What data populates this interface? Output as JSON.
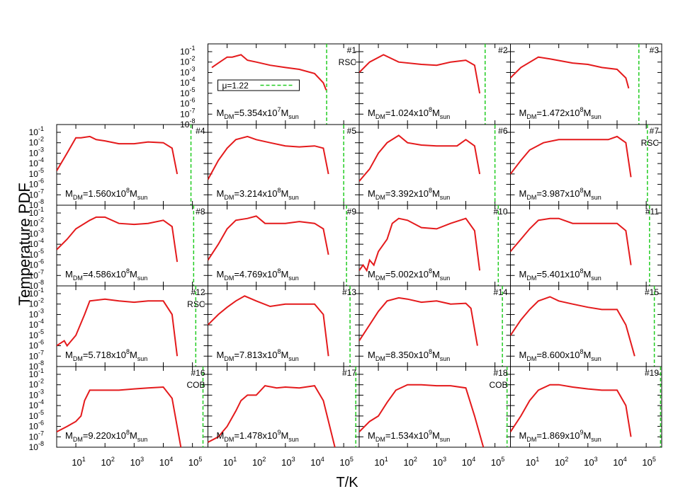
{
  "axes": {
    "xlabel": "T/K",
    "ylabel": "Temperature PDF",
    "log": true,
    "xlim": [
      2.2,
      340000
    ],
    "ylim": [
      1e-08,
      0.56
    ],
    "xticks": [
      {
        "value": 10,
        "label": "10",
        "power": "1"
      },
      {
        "value": 100,
        "label": "10",
        "power": "2"
      },
      {
        "value": 1000,
        "label": "10",
        "power": "3"
      },
      {
        "value": 10000,
        "label": "10",
        "power": "4"
      },
      {
        "value": 100000,
        "label": "10",
        "power": "5"
      }
    ],
    "yticks": [
      {
        "value": 1e-08,
        "label": "10",
        "power": "-8"
      },
      {
        "value": 1e-07,
        "label": "10",
        "power": "-7"
      },
      {
        "value": 1e-06,
        "label": "10",
        "power": "-6"
      },
      {
        "value": 1e-05,
        "label": "10",
        "power": "-5"
      },
      {
        "value": 0.0001,
        "label": "10",
        "power": "-4"
      },
      {
        "value": 0.001,
        "label": "10",
        "power": "-3"
      },
      {
        "value": 0.01,
        "label": "10",
        "power": "-2"
      },
      {
        "value": 0.1,
        "label": "10",
        "power": "-1"
      }
    ]
  },
  "chart_data": [
    {
      "type": "line",
      "title": "#1",
      "note": "RSC",
      "mass_label": [
        "M",
        "DM",
        "=5.354x10",
        "7",
        "M",
        "sun"
      ],
      "x": [
        3,
        5,
        10,
        15,
        30,
        50,
        100,
        300,
        1000,
        3000,
        10000,
        20000,
        25000
      ],
      "series": [
        {
          "color": "#e41a1c",
          "values": [
            0.003,
            0.008,
            0.03,
            0.03,
            0.05,
            0.015,
            0.01,
            0.005,
            0.003,
            0.002,
            0.0008,
            0.0001,
            2e-05
          ]
        }
      ],
      "vline": {
        "name": "μ=1.22",
        "color": "#22cc22",
        "x": 26000
      }
    },
    {
      "type": "line",
      "title": "#2",
      "mass_label": [
        "M",
        "DM",
        "=1.024x10",
        "8",
        "M",
        "sun"
      ],
      "x": [
        2.2,
        5,
        15,
        50,
        300,
        1000,
        3000,
        10000,
        20000,
        30000
      ],
      "series": [
        {
          "color": "#e41a1c",
          "values": [
            0.001,
            0.01,
            0.05,
            0.01,
            0.006,
            0.005,
            0.01,
            0.015,
            0.005,
            1e-05
          ]
        }
      ],
      "vline": {
        "color": "#22cc22",
        "x": 46000
      }
    },
    {
      "type": "line",
      "title": "#3",
      "mass_label": [
        "M",
        "DM",
        "=1.472x10",
        "8",
        "M",
        "sun"
      ],
      "x": [
        2.2,
        5,
        20,
        50,
        300,
        1000,
        3000,
        10000,
        20000,
        25000
      ],
      "series": [
        {
          "color": "#e41a1c",
          "values": [
            0.0003,
            0.003,
            0.03,
            0.02,
            0.008,
            0.006,
            0.003,
            0.002,
            0.0003,
            3e-05
          ]
        }
      ],
      "vline": {
        "color": "#22cc22",
        "x": 56000
      }
    },
    {
      "type": "line",
      "title": "#4",
      "mass_label": [
        "M",
        "DM",
        "=1.560x10",
        "8",
        "M",
        "sun"
      ],
      "x": [
        2.2,
        5,
        10,
        15,
        30,
        50,
        100,
        300,
        1000,
        3000,
        10000,
        20000,
        30000
      ],
      "series": [
        {
          "color": "#e41a1c",
          "values": [
            2e-05,
            0.001,
            0.03,
            0.03,
            0.04,
            0.02,
            0.015,
            0.008,
            0.008,
            0.012,
            0.01,
            0.003,
            1e-05
          ]
        }
      ],
      "vline": {
        "color": "#22cc22",
        "x": 89000
      }
    },
    {
      "type": "line",
      "title": "#5",
      "mass_label": [
        "M",
        "DM",
        "=3.214x10",
        "8",
        "M",
        "sun"
      ],
      "x": [
        2.2,
        5,
        10,
        20,
        50,
        100,
        300,
        1000,
        3000,
        10000,
        20000,
        30000
      ],
      "series": [
        {
          "color": "#e41a1c",
          "values": [
            3e-06,
            0.0002,
            0.003,
            0.02,
            0.04,
            0.02,
            0.01,
            0.005,
            0.004,
            0.005,
            0.003,
            1e-05
          ]
        }
      ],
      "vline": {
        "color": "#22cc22",
        "x": 100000
      }
    },
    {
      "type": "line",
      "title": "#6",
      "mass_label": [
        "M",
        "DM",
        "=3.392x10",
        "8",
        "M",
        "sun"
      ],
      "x": [
        2.2,
        5,
        10,
        20,
        50,
        100,
        300,
        1000,
        5000,
        10000,
        20000,
        30000
      ],
      "series": [
        {
          "color": "#e41a1c",
          "values": [
            2e-06,
            3e-05,
            0.001,
            0.01,
            0.05,
            0.01,
            0.006,
            0.005,
            0.005,
            0.02,
            0.005,
            1e-05
          ]
        }
      ],
      "vline": {
        "color": "#22cc22",
        "x": 100000
      }
    },
    {
      "type": "line",
      "title": "#7",
      "note": "RSC",
      "mass_label": [
        "M",
        "DM",
        "=3.987x10",
        "8",
        "M",
        "sun"
      ],
      "x": [
        2.2,
        5,
        10,
        30,
        100,
        1000,
        5000,
        10000,
        20000,
        30000
      ],
      "series": [
        {
          "color": "#e41a1c",
          "values": [
            1e-05,
            0.0002,
            0.002,
            0.01,
            0.02,
            0.02,
            0.02,
            0.04,
            0.01,
            5e-06
          ]
        }
      ],
      "vline": {
        "color": "#22cc22",
        "x": 110000
      }
    },
    {
      "type": "line",
      "title": "#8",
      "mass_label": [
        "M",
        "DM",
        "=4.586x10",
        "8",
        "M",
        "sun"
      ],
      "x": [
        2.2,
        5,
        10,
        30,
        50,
        100,
        300,
        1000,
        3000,
        10000,
        20000,
        30000
      ],
      "series": [
        {
          "color": "#e41a1c",
          "values": [
            3e-05,
            0.0003,
            0.003,
            0.02,
            0.04,
            0.04,
            0.01,
            0.008,
            0.01,
            0.02,
            0.005,
            2e-06
          ]
        }
      ],
      "vline": {
        "color": "#22cc22",
        "x": 110000
      }
    },
    {
      "type": "line",
      "title": "#9",
      "mass_label": [
        "M",
        "DM",
        "=4.769x10",
        "8",
        "M",
        "sun"
      ],
      "x": [
        2.2,
        5,
        10,
        20,
        50,
        100,
        200,
        1000,
        3000,
        10000,
        20000,
        30000
      ],
      "series": [
        {
          "color": "#e41a1c",
          "values": [
            3e-06,
            0.0001,
            0.003,
            0.02,
            0.03,
            0.05,
            0.01,
            0.01,
            0.015,
            0.01,
            0.003,
            1e-05
          ]
        }
      ],
      "vline": {
        "color": "#22cc22",
        "x": 125000
      }
    },
    {
      "type": "line",
      "title": "#10",
      "mass_label": [
        "M",
        "DM",
        "=5.002x10",
        "8",
        "M",
        "sun"
      ],
      "x": [
        2.2,
        3,
        4,
        5,
        7,
        10,
        20,
        30,
        50,
        100,
        300,
        1000,
        3000,
        10000,
        20000,
        30000
      ],
      "series": [
        {
          "color": "#e41a1c",
          "values": [
            3e-07,
            1e-06,
            3e-07,
            3e-06,
            1e-06,
            2e-05,
            0.0003,
            0.01,
            0.03,
            0.02,
            0.004,
            0.003,
            0.01,
            0.03,
            0.002,
            3e-07
          ]
        }
      ],
      "vline": {
        "color": "#22cc22",
        "x": 130000
      }
    },
    {
      "type": "line",
      "title": "#11",
      "mass_label": [
        "M",
        "DM",
        "=5.401x10",
        "8",
        "M",
        "sun"
      ],
      "x": [
        2.2,
        5,
        10,
        20,
        50,
        100,
        300,
        1000,
        3000,
        10000,
        20000,
        30000
      ],
      "series": [
        {
          "color": "#e41a1c",
          "values": [
            2e-05,
            0.0003,
            0.003,
            0.02,
            0.03,
            0.03,
            0.01,
            0.01,
            0.01,
            0.01,
            0.002,
            1e-06
          ]
        }
      ],
      "vline": {
        "color": "#22cc22",
        "x": 130000
      }
    },
    {
      "type": "line",
      "title": "#12",
      "note": "RSC",
      "mass_label": [
        "M",
        "DM",
        "=5.718x10",
        "8",
        "M",
        "sun"
      ],
      "x": [
        2.2,
        4,
        5,
        10,
        20,
        30,
        100,
        300,
        1000,
        3000,
        10000,
        20000,
        30000
      ],
      "series": [
        {
          "color": "#e41a1c",
          "values": [
            1e-06,
            3e-06,
            1e-06,
            1e-05,
            0.001,
            0.02,
            0.03,
            0.02,
            0.015,
            0.02,
            0.02,
            0.001,
            1e-07
          ]
        }
      ],
      "vline": {
        "color": "#22cc22",
        "x": 130000
      }
    },
    {
      "type": "line",
      "title": "#13",
      "mass_label": [
        "M",
        "DM",
        "=7.813x10",
        "8",
        "M",
        "sun"
      ],
      "x": [
        2.2,
        5,
        10,
        20,
        40,
        100,
        300,
        1000,
        3000,
        10000,
        20000,
        30000
      ],
      "series": [
        {
          "color": "#e41a1c",
          "values": [
            0.0001,
            0.001,
            0.005,
            0.02,
            0.06,
            0.02,
            0.006,
            0.01,
            0.01,
            0.01,
            0.001,
            1e-07
          ]
        }
      ],
      "vline": {
        "color": "#22cc22",
        "x": 165000
      }
    },
    {
      "type": "line",
      "title": "#14",
      "mass_label": [
        "M",
        "DM",
        "=8.350x10",
        "8",
        "M",
        "sun"
      ],
      "x": [
        2.2,
        5,
        10,
        20,
        50,
        100,
        300,
        1000,
        3000,
        10000,
        15000,
        25000
      ],
      "series": [
        {
          "color": "#e41a1c",
          "values": [
            3e-06,
            0.0001,
            0.002,
            0.02,
            0.04,
            0.03,
            0.015,
            0.02,
            0.01,
            0.012,
            0.004,
            1e-06
          ]
        }
      ],
      "vline": {
        "color": "#22cc22",
        "x": 180000
      }
    },
    {
      "type": "line",
      "title": "#15",
      "mass_label": [
        "M",
        "DM",
        "=8.600x10",
        "8",
        "M",
        "sun"
      ],
      "x": [
        2.2,
        5,
        10,
        20,
        50,
        100,
        300,
        1000,
        3000,
        10000,
        20000,
        40000
      ],
      "series": [
        {
          "color": "#e41a1c",
          "values": [
            1e-05,
            0.0003,
            0.003,
            0.02,
            0.05,
            0.02,
            0.01,
            0.005,
            0.003,
            0.003,
            0.0001,
            1e-07
          ]
        }
      ],
      "vline": {
        "color": "#22cc22",
        "x": 190000
      }
    },
    {
      "type": "line",
      "title": "#16",
      "note": "COB",
      "mass_label": [
        "M",
        "DM",
        "=9.220x10",
        "8",
        "M",
        "sun"
      ],
      "x": [
        2.2,
        5,
        10,
        15,
        20,
        30,
        50,
        100,
        300,
        1000,
        3000,
        10000,
        20000,
        40000
      ],
      "series": [
        {
          "color": "#e41a1c",
          "values": [
            3e-07,
            1e-06,
            3e-06,
            1e-05,
            0.0003,
            0.003,
            0.003,
            0.003,
            0.003,
            0.004,
            0.005,
            0.006,
            0.0005,
            1e-08
          ]
        }
      ],
      "vline": {
        "color": "#22cc22",
        "x": 230000
      }
    },
    {
      "type": "line",
      "title": "#17",
      "mass_label": [
        "M",
        "DM",
        "=1.478x10",
        "9",
        "M",
        "sun"
      ],
      "x": [
        2.2,
        5,
        10,
        20,
        30,
        50,
        100,
        200,
        500,
        1000,
        3000,
        10000,
        20000,
        50000
      ],
      "series": [
        {
          "color": "#e41a1c",
          "values": [
            3e-08,
            1e-07,
            1e-06,
            3e-05,
            0.0003,
            0.001,
            0.001,
            0.008,
            0.005,
            0.006,
            0.005,
            0.008,
            0.0003,
            1e-08
          ]
        }
      ],
      "vline": {
        "color": "#22cc22",
        "x": 260000
      }
    },
    {
      "type": "line",
      "title": "#18",
      "note": "COB",
      "mass_label": [
        "M",
        "DM",
        "=1.534x10",
        "9",
        "M",
        "sun"
      ],
      "x": [
        2.2,
        5,
        10,
        20,
        40,
        100,
        300,
        1000,
        3000,
        10000,
        20000,
        40000
      ],
      "series": [
        {
          "color": "#e41a1c",
          "values": [
            3e-07,
            3e-06,
            1e-05,
            0.0002,
            0.003,
            0.01,
            0.01,
            0.008,
            0.008,
            0.005,
            1e-05,
            1e-08
          ]
        }
      ],
      "vline": {
        "color": "#22cc22",
        "x": 260000
      }
    },
    {
      "type": "line",
      "title": "#19",
      "mass_label": [
        "M",
        "DM",
        "=1.869x10",
        "9",
        "M",
        "sun"
      ],
      "x": [
        2.2,
        5,
        10,
        20,
        50,
        100,
        300,
        1000,
        3000,
        10000,
        20000,
        30000
      ],
      "series": [
        {
          "color": "#e41a1c",
          "values": [
            3e-07,
            1e-05,
            0.0003,
            0.003,
            0.01,
            0.01,
            0.006,
            0.004,
            0.003,
            0.003,
            0.0001,
            1e-07
          ]
        }
      ],
      "vline": {
        "color": "#22cc22",
        "x": 310000
      }
    }
  ]
}
